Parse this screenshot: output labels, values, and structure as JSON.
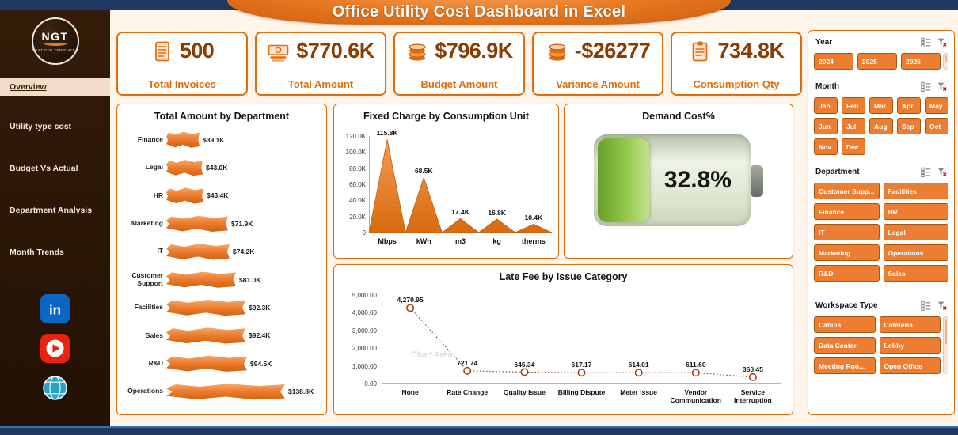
{
  "header": {
    "title": "Office Utility Cost Dashboard in Excel"
  },
  "sidebar": {
    "logo_text": "NGT",
    "logo_subtext": "NEXT GEN TEMPLATES",
    "items": [
      {
        "label": "Overview",
        "active": true
      },
      {
        "label": "Utility type cost",
        "active": false
      },
      {
        "label": "Budget Vs Actual",
        "active": false
      },
      {
        "label": "Department Analysis",
        "active": false
      },
      {
        "label": "Month Trends",
        "active": false
      }
    ],
    "social": [
      {
        "name": "linkedin",
        "color": "#0A66C2"
      },
      {
        "name": "youtube",
        "color": "#E8230F"
      },
      {
        "name": "website",
        "color": "#2BA3C8"
      }
    ]
  },
  "kpis": [
    {
      "icon": "invoice-icon",
      "value": "500",
      "label": "Total Invoices"
    },
    {
      "icon": "cash-icon",
      "value": "$770.6K",
      "label": "Total Amount"
    },
    {
      "icon": "coins-icon",
      "value": "$796.9K",
      "label": "Budget Amount"
    },
    {
      "icon": "coins-icon",
      "value": "-$26277",
      "label": "Variance Amount"
    },
    {
      "icon": "clipboard-icon",
      "value": "734.8K",
      "label": "Consumption Qty"
    }
  ],
  "chart_data": [
    {
      "id": "dept_bar",
      "type": "bar",
      "orientation": "horizontal",
      "title": "Total Amount by Department",
      "categories": [
        "Finance",
        "Legal",
        "HR",
        "Marketing",
        "IT",
        "Customer Support",
        "Facilities",
        "Sales",
        "R&D",
        "Operations"
      ],
      "values": [
        39.1,
        43.0,
        43.4,
        71.9,
        74.2,
        81.0,
        92.3,
        92.4,
        94.5,
        138.8
      ],
      "labels": [
        "$39.1K",
        "$43.0K",
        "$43.4K",
        "$71.9K",
        "$74.2K",
        "$81.0K",
        "$92.3K",
        "$92.4K",
        "$94.5K",
        "$138.8K"
      ],
      "bar_color": "#ED7D31"
    },
    {
      "id": "fixed_charge",
      "type": "area",
      "title": "Fixed Charge by Consumption Unit",
      "categories": [
        "Mbps",
        "kWh",
        "m3",
        "kg",
        "therms"
      ],
      "values": [
        115.8,
        68.5,
        17.4,
        16.8,
        10.4
      ],
      "labels": [
        "115.8K",
        "68.5K",
        "17.4K",
        "16.8K",
        "10.4K"
      ],
      "ylim": [
        0,
        120
      ],
      "yticks": [
        "0",
        "20.0K",
        "40.0K",
        "60.0K",
        "80.0K",
        "100.0K",
        "120.0K"
      ],
      "fill_color": "#ED7D31"
    },
    {
      "id": "demand_gauge",
      "type": "gauge",
      "title": "Demand Cost%",
      "value": 32.8,
      "label": "32.8%",
      "fill_color": "#93C84A"
    },
    {
      "id": "late_fee",
      "type": "line",
      "title": "Late Fee by Issue Category",
      "categories": [
        "None",
        "Rate Change",
        "Quality Issue",
        "Billing Dispute",
        "Meter Issue",
        "Vendor Communication",
        "Service Interruption"
      ],
      "values": [
        4270.95,
        721.74,
        645.34,
        617.17,
        614.01,
        611.6,
        360.45
      ],
      "labels": [
        "4,270.95",
        "721.74",
        "645.34",
        "617.17",
        "614.01",
        "611.60",
        "360.45"
      ],
      "ylim": [
        0,
        5000
      ],
      "yticks": [
        "0.00",
        "1,000.00",
        "2,000.00",
        "3,000.00",
        "4,000.00",
        "5,000.00"
      ],
      "line_color": "#8B4A21",
      "watermark": "Chart Area"
    }
  ],
  "filters": [
    {
      "title": "Year",
      "options": [
        "2024",
        "2025",
        "2026"
      ],
      "columns": 3,
      "scrollbar": true
    },
    {
      "title": "Month",
      "options": [
        "Jan",
        "Feb",
        "Mar",
        "Apr",
        "May",
        "Jun",
        "Jul",
        "Aug",
        "Sep",
        "Oct",
        "Nov",
        "Dec"
      ],
      "columns": 5,
      "scrollbar": false
    },
    {
      "title": "Department",
      "options": [
        "Customer Supp...",
        "Facilities",
        "Finance",
        "HR",
        "IT",
        "Legal",
        "Marketing",
        "Operations",
        "R&D",
        "Sales"
      ],
      "columns": 2,
      "scrollbar": false
    },
    {
      "title": "Workspace Type",
      "options": [
        "Cabins",
        "Cafeteria",
        "Data Center",
        "Lobby",
        "Meeting Roo...",
        "Open Office"
      ],
      "columns": 2,
      "scrollbar": true
    }
  ],
  "colors": {
    "accent": "#E36C0A",
    "button": "#ED7D31",
    "kpi_value": "#8A3B00",
    "sidebar_bg": "#2A1505",
    "navy": "#1F3864",
    "gauge_green": "#93C84A"
  }
}
